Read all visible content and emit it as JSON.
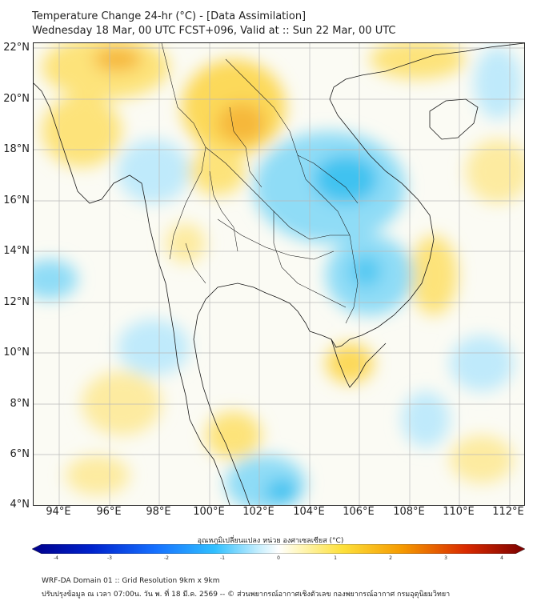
{
  "header": {
    "title_line1": "Temperature Change 24-hr (°C) - [Data Assimilation]",
    "title_line2": "Wednesday 18 Mar, 00 UTC FCST+096, Valid at :: Sun 22 Mar, 00 UTC"
  },
  "map": {
    "lat_labels": [
      "22°N",
      "20°N",
      "18°N",
      "16°N",
      "14°N",
      "12°N",
      "10°N",
      "8°N",
      "6°N",
      "4°N"
    ],
    "lon_labels": [
      "94°E",
      "96°E",
      "98°E",
      "100°E",
      "102°E",
      "104°E",
      "106°E",
      "108°E",
      "110°E",
      "112°E"
    ],
    "colors": {
      "warm": "#f5c400",
      "cool": "#2fbfff",
      "border": "#1a1a1a",
      "grid": "#b9b9b9"
    }
  },
  "colorbar": {
    "title": "อุณหภูมิเปลี่ยนแปลง หน่วย องศาเซลเซียส (°C)",
    "tick_labels": [
      "-4",
      "-3",
      "-2",
      "-1",
      "0",
      "1",
      "2",
      "3",
      "4"
    ]
  },
  "footer": {
    "line1": "WRF-DA Domain 01 :: Grid Resolution 9km x 9km",
    "line2": "ปรับปรุงข้อมูล ณ เวลา 07:00น. วัน พ. ที่ 18 มี.ค. 2569 -- © ส่วนพยากรณ์อากาศเชิงตัวเลข กองพยากรณ์อากาศ กรมอุตุนิยมวิทยา"
  }
}
